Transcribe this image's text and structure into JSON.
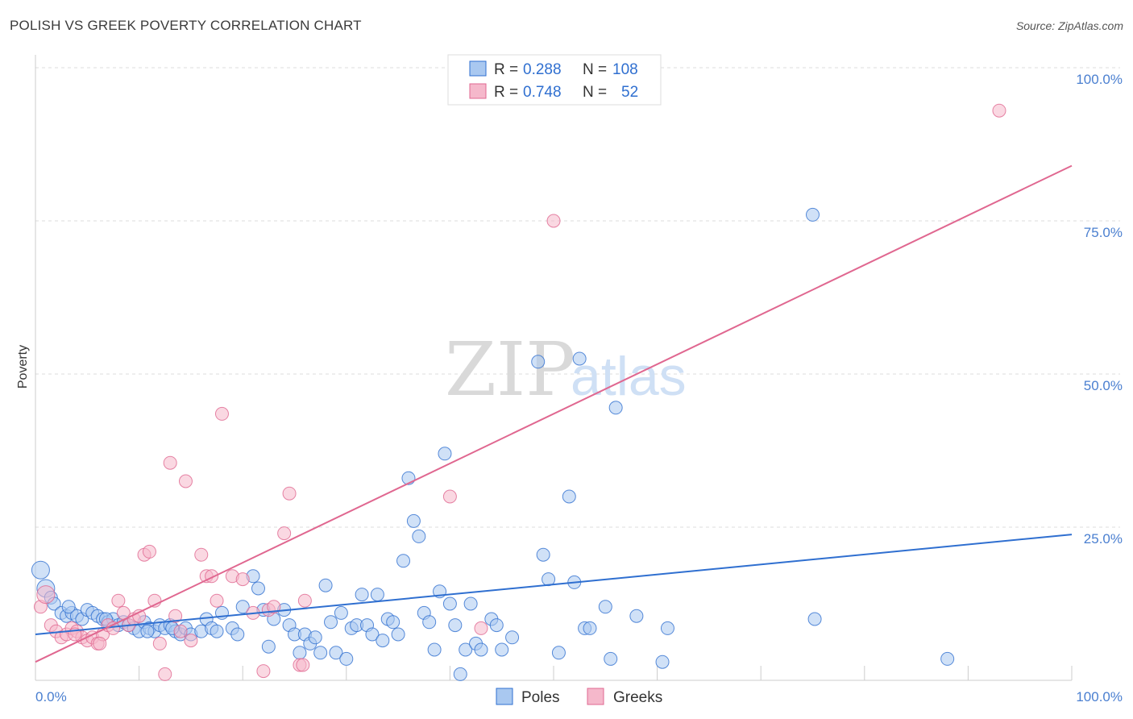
{
  "title": "POLISH VS GREEK POVERTY CORRELATION CHART",
  "source": "Source: ZipAtlas.com",
  "watermark": {
    "zip": "ZIP",
    "atlas": "atlas"
  },
  "colors": {
    "poles": "#2f6fd0",
    "poles_fill": "#a9c8f0",
    "greeks": "#e06790",
    "greeks_fill": "#f5b8cb",
    "grid": "#dddddd",
    "tick_label": "#4a7fd0"
  },
  "legend": {
    "rows": [
      {
        "r_label": "R = ",
        "r_value": "0.288",
        "n_label": "N = ",
        "n_value": "108"
      },
      {
        "r_label": "R = ",
        "r_value": "0.748",
        "n_label": "N = ",
        "n_value": "52"
      }
    ]
  },
  "chart_data": {
    "type": "scatter",
    "title": "POLISH VS GREEK POVERTY CORRELATION CHART",
    "xlabel": "",
    "ylabel": "Poverty",
    "xlim": [
      0,
      100
    ],
    "ylim": [
      0,
      102
    ],
    "x_tick_labels": [
      "0.0%",
      "100.0%"
    ],
    "y_ticks": [
      25,
      50,
      75,
      100
    ],
    "y_tick_labels": [
      "25.0%",
      "50.0%",
      "75.0%",
      "100.0%"
    ],
    "legend_position": "bottom-center",
    "series": [
      {
        "name": "Poles",
        "r": 0.288,
        "n": 108,
        "trend": {
          "x": [
            0,
            100
          ],
          "y": [
            7.5,
            23.8
          ]
        },
        "points": [
          [
            0.5,
            18
          ],
          [
            1,
            15
          ],
          [
            1.5,
            13.5
          ],
          [
            1.8,
            12.5
          ],
          [
            2.5,
            11
          ],
          [
            3,
            10.5
          ],
          [
            3.5,
            11
          ],
          [
            4,
            10.5
          ],
          [
            4.5,
            10
          ],
          [
            5,
            11.5
          ],
          [
            5.5,
            11
          ],
          [
            6,
            10.5
          ],
          [
            6.5,
            10
          ],
          [
            7,
            9.5
          ],
          [
            7.5,
            10
          ],
          [
            8,
            9
          ],
          [
            8.5,
            9.5
          ],
          [
            9,
            9
          ],
          [
            9.5,
            8.5
          ],
          [
            10,
            8
          ],
          [
            10.5,
            9.5
          ],
          [
            11,
            8.5
          ],
          [
            11.5,
            8
          ],
          [
            12,
            9
          ],
          [
            12.5,
            8.5
          ],
          [
            13,
            9
          ],
          [
            13.5,
            8
          ],
          [
            14,
            7.5
          ],
          [
            14.5,
            8.5
          ],
          [
            15,
            7.5
          ],
          [
            16,
            8
          ],
          [
            16.5,
            10
          ],
          [
            17,
            8.5
          ],
          [
            17.5,
            8
          ],
          [
            18,
            11
          ],
          [
            19,
            8.5
          ],
          [
            19.5,
            7.5
          ],
          [
            20,
            12
          ],
          [
            21,
            17
          ],
          [
            21.5,
            15
          ],
          [
            22,
            11.5
          ],
          [
            22.5,
            5.5
          ],
          [
            23,
            10
          ],
          [
            24,
            11.5
          ],
          [
            24.5,
            9
          ],
          [
            25,
            7.5
          ],
          [
            25.5,
            4.5
          ],
          [
            26,
            7.5
          ],
          [
            26.5,
            6
          ],
          [
            27,
            7
          ],
          [
            27.5,
            4.5
          ],
          [
            28,
            15.5
          ],
          [
            28.5,
            9.5
          ],
          [
            29,
            4.5
          ],
          [
            29.5,
            11
          ],
          [
            30,
            3.5
          ],
          [
            30.5,
            8.5
          ],
          [
            31,
            9
          ],
          [
            31.5,
            14
          ],
          [
            32,
            9
          ],
          [
            32.5,
            7.5
          ],
          [
            33,
            14
          ],
          [
            33.5,
            6.5
          ],
          [
            34,
            10
          ],
          [
            34.5,
            9.5
          ],
          [
            35,
            7.5
          ],
          [
            35.5,
            19.5
          ],
          [
            36,
            33
          ],
          [
            36.5,
            26
          ],
          [
            37,
            23.5
          ],
          [
            37.5,
            11
          ],
          [
            38,
            9.5
          ],
          [
            38.5,
            5
          ],
          [
            39,
            14.5
          ],
          [
            39.5,
            37
          ],
          [
            40,
            12.5
          ],
          [
            40.5,
            9
          ],
          [
            41,
            1
          ],
          [
            41.5,
            5
          ],
          [
            42,
            12.5
          ],
          [
            42.5,
            6
          ],
          [
            43,
            5
          ],
          [
            44,
            10
          ],
          [
            44.5,
            9
          ],
          [
            45,
            5
          ],
          [
            46,
            7
          ],
          [
            48.5,
            52
          ],
          [
            49,
            20.5
          ],
          [
            49.5,
            16.5
          ],
          [
            50.5,
            4.5
          ],
          [
            51.5,
            30
          ],
          [
            52,
            16
          ],
          [
            52.5,
            52.5
          ],
          [
            53,
            8.5
          ],
          [
            53.5,
            8.5
          ],
          [
            55,
            12
          ],
          [
            55.5,
            3.5
          ],
          [
            56,
            44.5
          ],
          [
            58,
            10.5
          ],
          [
            60.5,
            3
          ],
          [
            61,
            8.5
          ],
          [
            75,
            76
          ],
          [
            75.2,
            10
          ],
          [
            88,
            3.5
          ],
          [
            3.2,
            12
          ],
          [
            6.8,
            10
          ],
          [
            10.8,
            8
          ],
          [
            13.2,
            8.5
          ]
        ]
      },
      {
        "name": "Greeks",
        "r": 0.748,
        "n": 52,
        "trend": {
          "x": [
            0,
            100
          ],
          "y": [
            3,
            84
          ]
        },
        "points": [
          [
            0.5,
            12
          ],
          [
            1,
            14
          ],
          [
            1.5,
            9
          ],
          [
            2,
            8
          ],
          [
            2.5,
            7
          ],
          [
            3,
            7.5
          ],
          [
            3.5,
            8.5
          ],
          [
            4,
            8
          ],
          [
            4.5,
            7
          ],
          [
            5,
            6.5
          ],
          [
            5.5,
            7
          ],
          [
            6,
            6
          ],
          [
            6.5,
            7.5
          ],
          [
            7,
            9
          ],
          [
            7.5,
            8.5
          ],
          [
            8,
            13
          ],
          [
            8.5,
            11
          ],
          [
            9,
            9
          ],
          [
            9.5,
            10
          ],
          [
            10,
            10.5
          ],
          [
            10.5,
            20.5
          ],
          [
            11,
            21
          ],
          [
            11.5,
            13
          ],
          [
            12,
            6
          ],
          [
            12.5,
            1
          ],
          [
            13,
            35.5
          ],
          [
            13.5,
            10.5
          ],
          [
            14,
            8
          ],
          [
            14.5,
            32.5
          ],
          [
            15,
            6.5
          ],
          [
            16,
            20.5
          ],
          [
            16.5,
            17
          ],
          [
            17,
            17
          ],
          [
            17.5,
            13
          ],
          [
            18,
            43.5
          ],
          [
            19,
            17
          ],
          [
            20,
            16.5
          ],
          [
            21,
            11
          ],
          [
            22,
            1.5
          ],
          [
            22.5,
            11.5
          ],
          [
            23,
            12
          ],
          [
            24,
            24
          ],
          [
            24.5,
            30.5
          ],
          [
            25.5,
            2.5
          ],
          [
            25.8,
            2.5
          ],
          [
            26,
            13
          ],
          [
            40,
            30
          ],
          [
            43,
            8.5
          ],
          [
            50,
            75
          ],
          [
            93,
            93
          ],
          [
            3.8,
            7.5
          ],
          [
            6.2,
            6
          ]
        ]
      }
    ]
  },
  "bottom_legend": [
    {
      "label": "Poles"
    },
    {
      "label": "Greeks"
    }
  ]
}
